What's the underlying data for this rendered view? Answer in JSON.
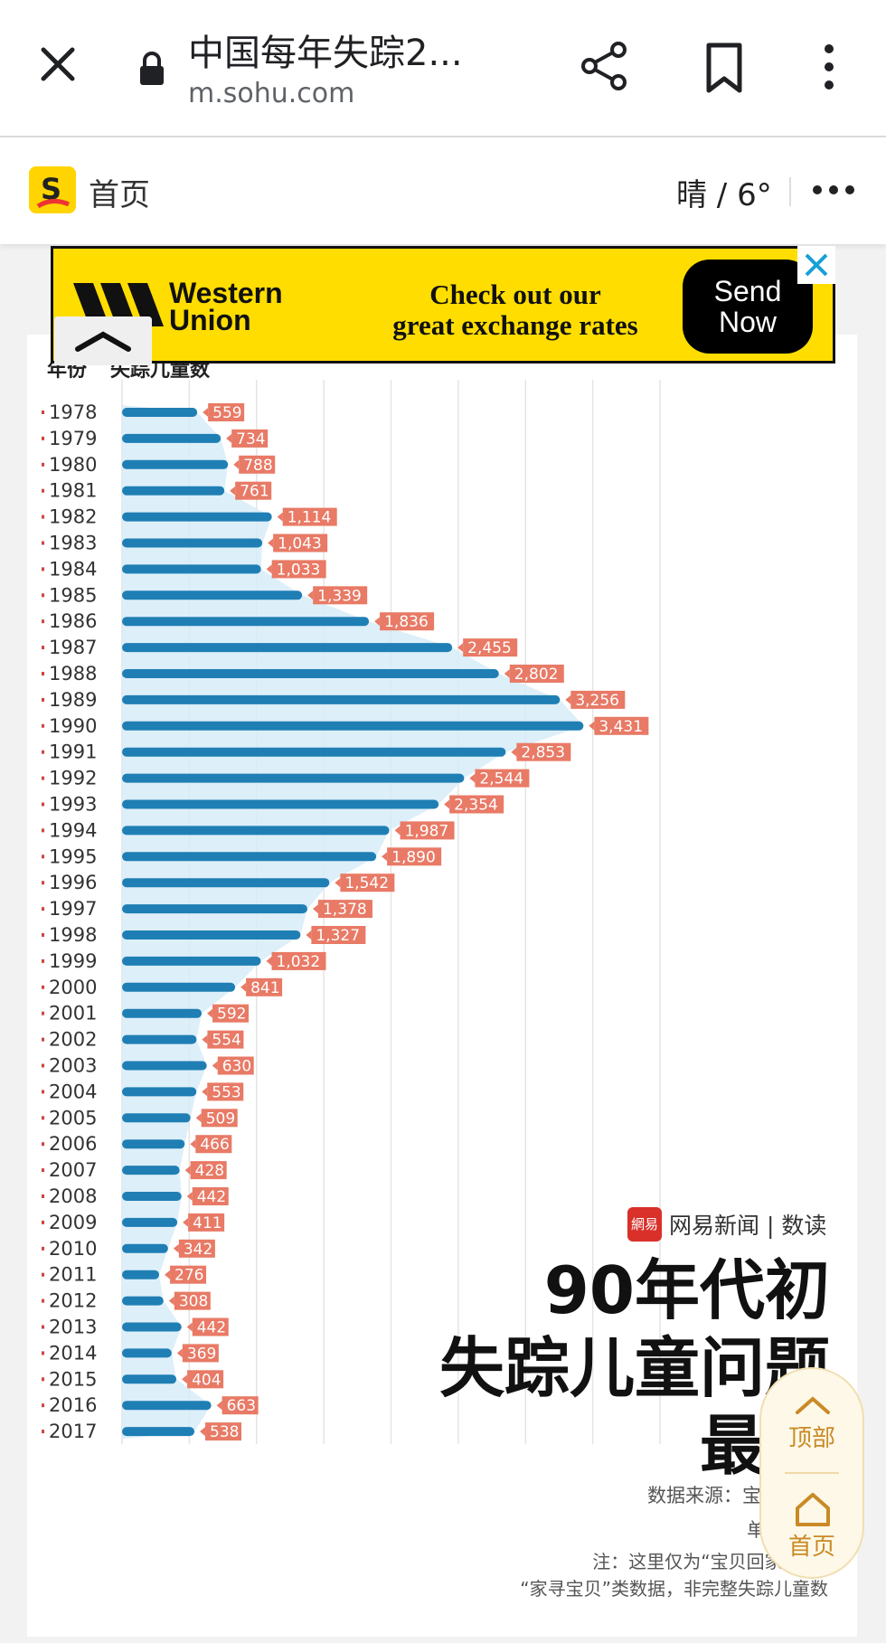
{
  "browser": {
    "title": "中国每年失踪2...",
    "url": "m.sohu.com",
    "close_icon": "close-icon",
    "lock_icon": "lock-icon",
    "share_icon": "share-icon",
    "bookmark_icon": "bookmark-icon",
    "more_icon": "more-vert-icon"
  },
  "site_bar": {
    "home_label": "首页",
    "weather": "晴 / 6°",
    "logo_icon": "sohu-logo-icon",
    "more_icon": "more-horiz-icon"
  },
  "ad": {
    "brand": "Western\nUnion",
    "headline": "Check out our\ngreat exchange rates",
    "cta": "Send\nNow",
    "close_icon": "close-icon",
    "collapse_icon": "chevron-up-icon"
  },
  "chart_data": {
    "type": "bar",
    "orientation": "horizontal",
    "header_year": "年份",
    "header_value": "失踪儿童数",
    "categories": [
      "1978",
      "1979",
      "1980",
      "1981",
      "1982",
      "1983",
      "1984",
      "1985",
      "1986",
      "1987",
      "1988",
      "1989",
      "1990",
      "1991",
      "1992",
      "1993",
      "1994",
      "1995",
      "1996",
      "1997",
      "1998",
      "1999",
      "2000",
      "2001",
      "2002",
      "2003",
      "2004",
      "2005",
      "2006",
      "2007",
      "2008",
      "2009",
      "2010",
      "2011",
      "2012",
      "2013",
      "2014",
      "2015",
      "2016",
      "2017"
    ],
    "values": [
      559,
      734,
      788,
      761,
      1114,
      1043,
      1033,
      1339,
      1836,
      2455,
      2802,
      3256,
      3431,
      2853,
      2544,
      2354,
      1987,
      1890,
      1542,
      1378,
      1327,
      1032,
      841,
      592,
      554,
      630,
      553,
      509,
      466,
      428,
      442,
      411,
      342,
      276,
      308,
      442,
      369,
      404,
      663,
      538
    ],
    "value_labels": [
      "559",
      "734",
      "788",
      "761",
      "1,114",
      "1,043",
      "1,033",
      "1,339",
      "1,836",
      "2,455",
      "2,802",
      "3,256",
      "3,431",
      "2,853",
      "2,544",
      "2,354",
      "1,987",
      "1,890",
      "1,542",
      "1,378",
      "1,327",
      "1,032",
      "841",
      "592",
      "554",
      "630",
      "553",
      "509",
      "466",
      "428",
      "442",
      "411",
      "342",
      "276",
      "308",
      "442",
      "369",
      "404",
      "663",
      "538"
    ],
    "xlim": [
      0,
      4000
    ],
    "grid": true,
    "colors": {
      "bar": "#1f7fb4",
      "area": "#d7ecf8",
      "label_bg": "#e87a66"
    }
  },
  "credit": {
    "logo_text": "網易",
    "text": "网易新闻 | 数读"
  },
  "overlay_title": "90年代初\n失踪儿童问题\n最严",
  "source_text": "数据来源：宝",
  "source_tail": "单",
  "note": "注：这里仅为“宝贝回家”网站",
  "note_line2": "“家寻宝贝”类数据，非完整失踪儿童数",
  "float_nav": {
    "top_label": "顶部",
    "home_label": "首页",
    "top_icon": "chevron-up-icon",
    "home_icon": "home-icon"
  }
}
